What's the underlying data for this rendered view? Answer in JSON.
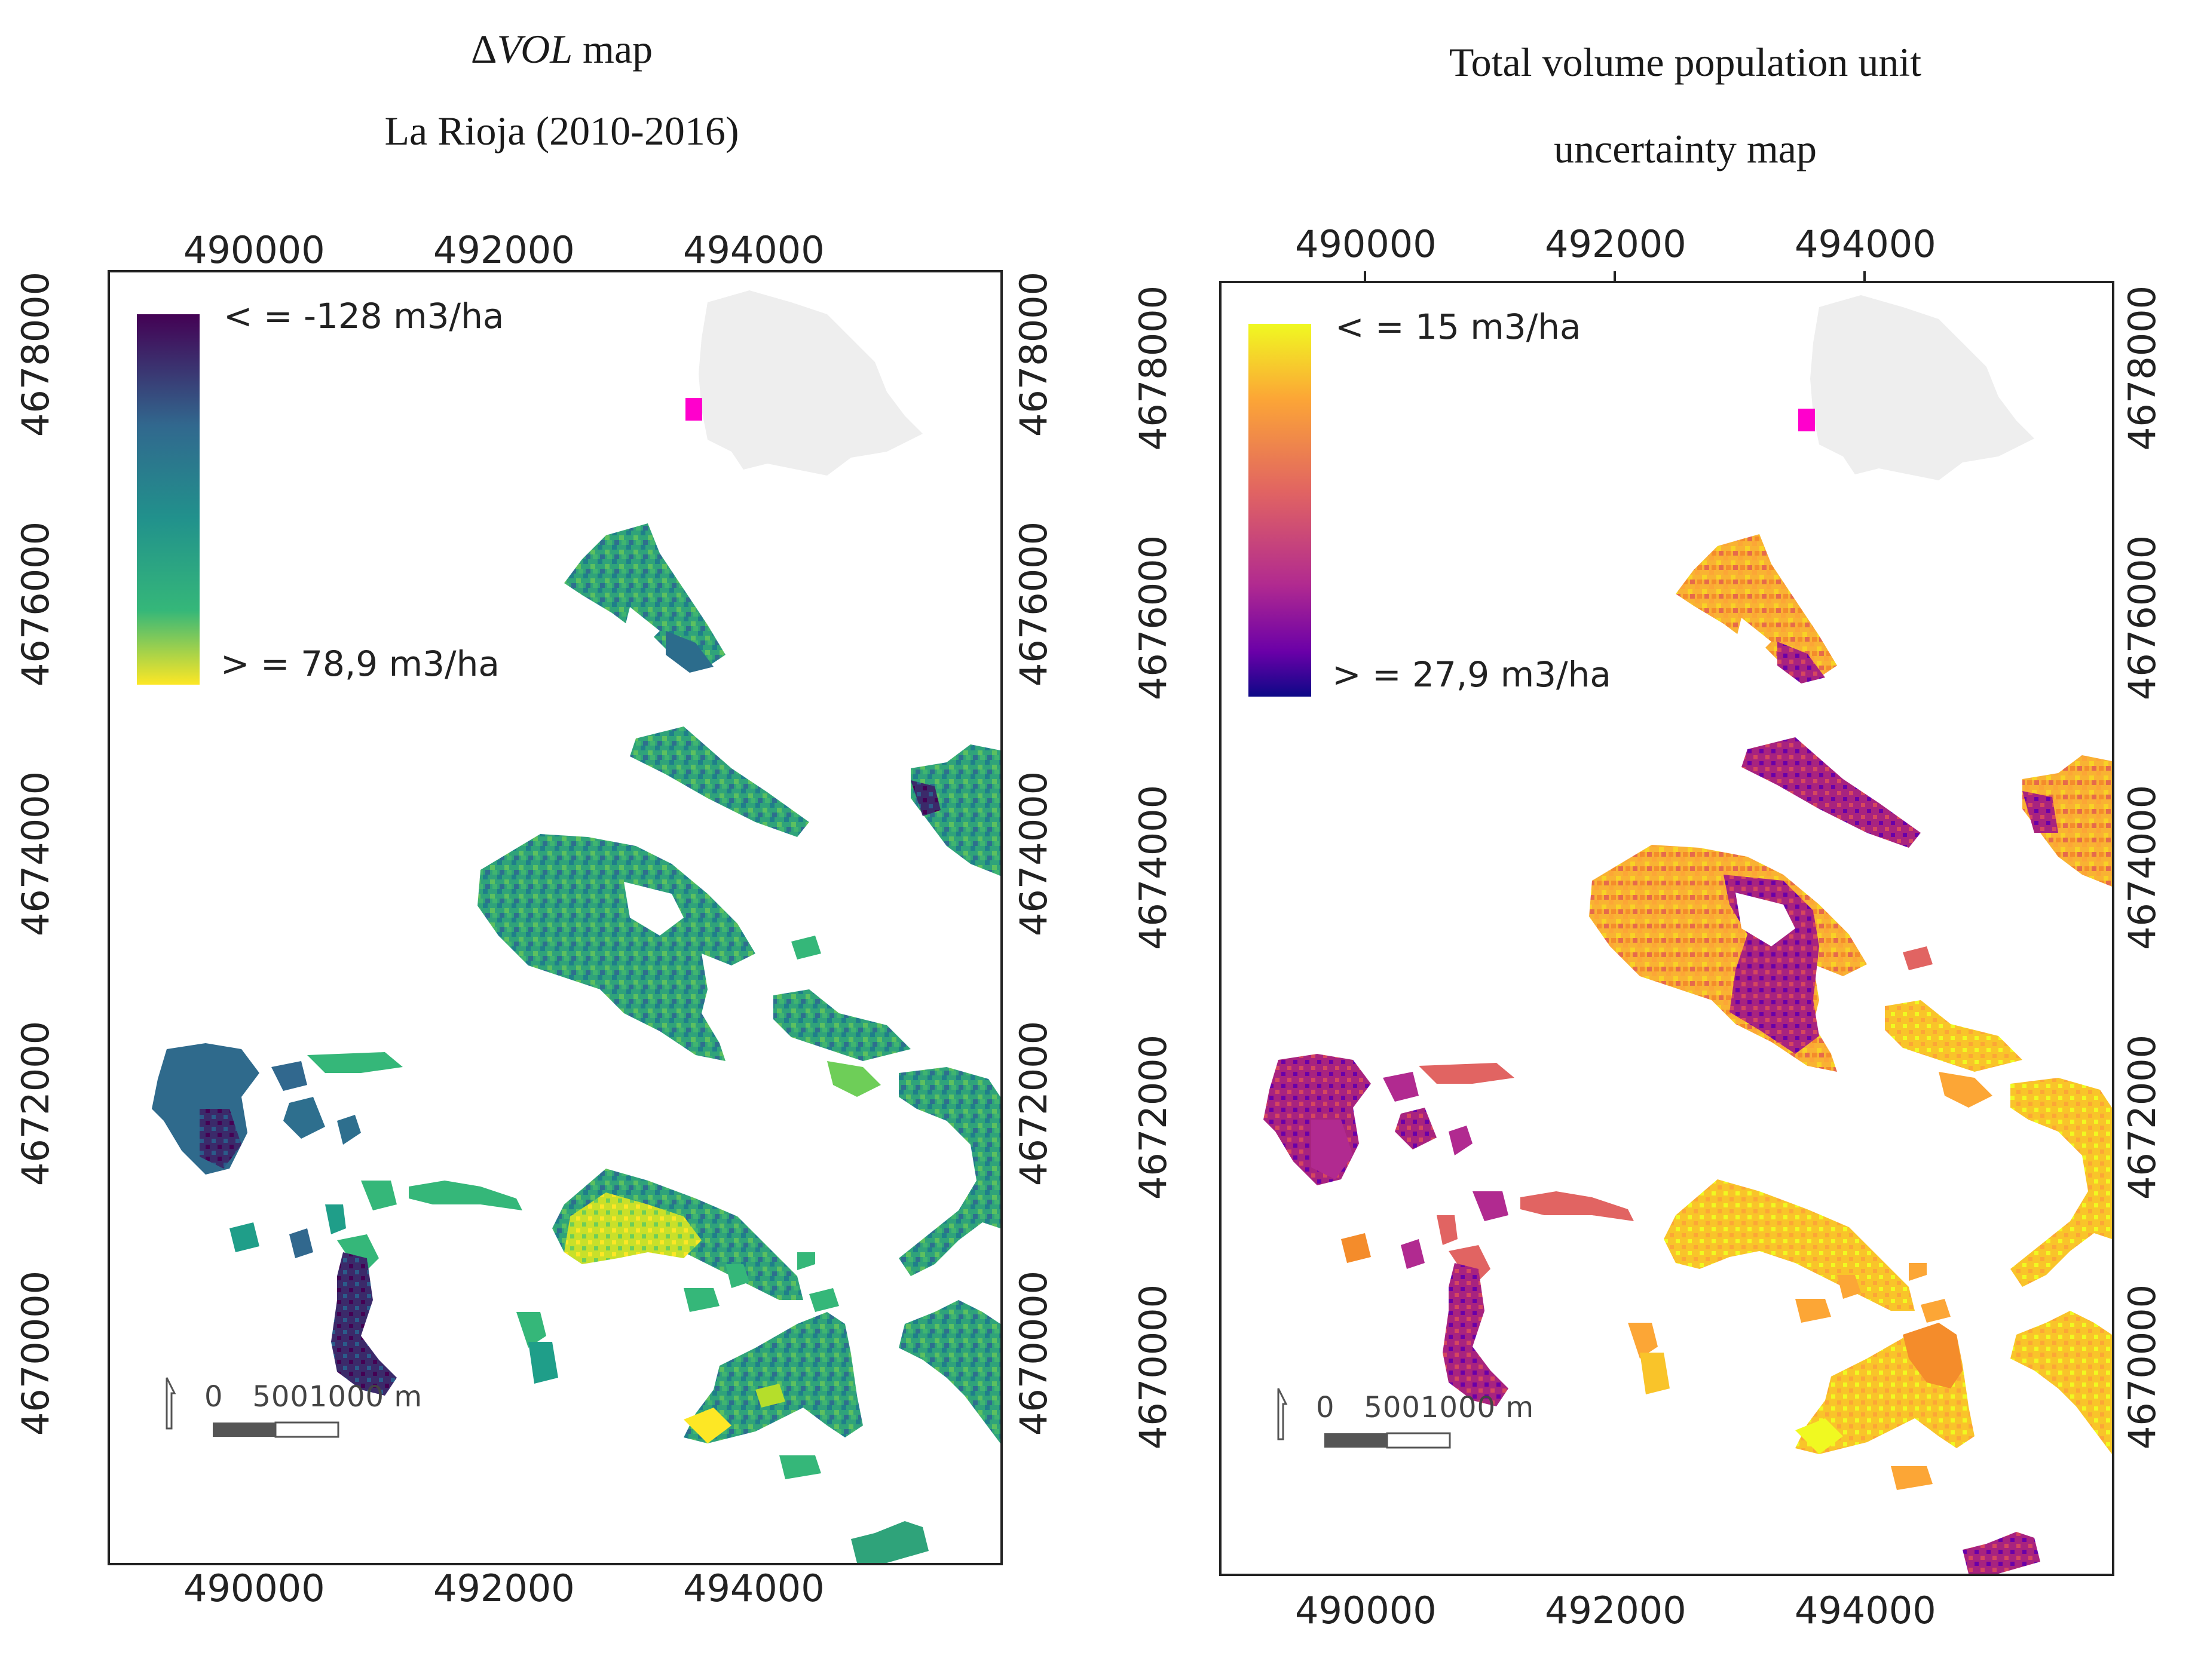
{
  "left_panel": {
    "title_line1_symbol": "Δ",
    "title_line1_italic": "VOL",
    "title_line1_rest": " map",
    "title_line2": "La Rioja (2010-2016)",
    "x_ticks": [
      "490000",
      "492000",
      "494000"
    ],
    "y_ticks": [
      "4678000",
      "4676000",
      "4674000",
      "4672000",
      "4670000"
    ],
    "legend": {
      "min_label": "< = -128 m3/ha",
      "max_label": "> = 78,9 m3/ha"
    },
    "scale_bar": {
      "label": "0   5001000 m"
    },
    "colors": [
      "#440154",
      "#31688e",
      "#26828e",
      "#35b779",
      "#1f9e89",
      "#6ece58",
      "#b5de2b",
      "#fde725"
    ]
  },
  "right_panel": {
    "title_line1": "Total volume population unit",
    "title_line2": "uncertainty map",
    "x_ticks": [
      "490000",
      "492000",
      "494000"
    ],
    "y_ticks": [
      "4678000",
      "4676000",
      "4674000",
      "4672000",
      "4670000"
    ],
    "legend": {
      "min_label": "< = 15 m3/ha",
      "max_label": "> = 27,9 m3/ha"
    },
    "scale_bar": {
      "label": "0   5001000 m"
    },
    "colors": [
      "#0d0887",
      "#6a00a8",
      "#b12a90",
      "#e16462",
      "#f48c2b",
      "#fca636",
      "#f9c42a",
      "#f0f921"
    ]
  },
  "inset": {
    "region_color": "#eeeeee",
    "marker_color": "#ff00cc"
  }
}
